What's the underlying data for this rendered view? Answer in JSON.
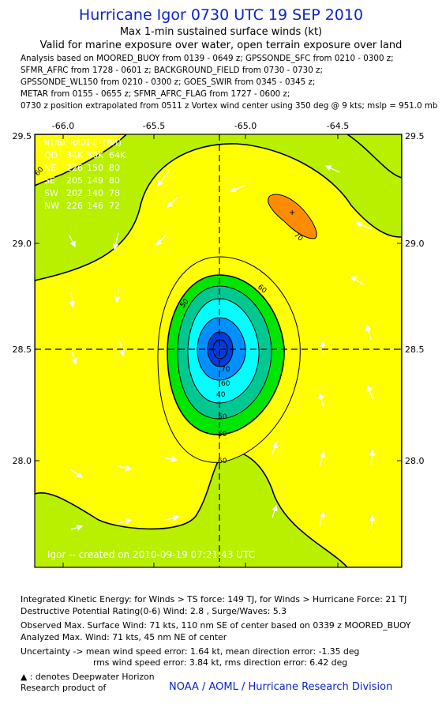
{
  "header": {
    "title": "Hurricane Igor 0730 UTC 19 SEP 2010",
    "subtitle": "Max 1-min sustained surface winds (kt)",
    "validity": "Valid for marine exposure over water, open terrain exposure over land",
    "analysis_lines": [
      "Analysis based on MOORED_BUOY from 0139 - 0649 z; GPSSONDE_SFC from 0210 - 0300 z;",
      "SFMR_AFRC from 1728 - 0601 z; BACKGROUND_FIELD from 0730 - 0730 z;",
      "GPSSONDE_WL150 from 0210 - 0300 z; GOES_SWIR from 0345 - 0345 z;",
      "METAR from 0155 - 0655 z; SFMR_AFRC_FLAG from 1727 - 0600 z;",
      "0730 z position extrapolated from 0511 z Vortex wind center using 350 deg @ 9 kts; mslp = 951.0 mb"
    ]
  },
  "map": {
    "x_ticks": [
      "-66.0",
      "-65.5",
      "-65.0",
      "-64.5"
    ],
    "y_ticks": [
      "29.5",
      "29.0",
      "28.5",
      "28.0"
    ],
    "lon_range": [
      -66.1,
      -64.35
    ],
    "lat_range": [
      27.5,
      29.5
    ],
    "center": {
      "lon": -65.1,
      "lat": 28.5
    },
    "colors": {
      "lt_green": "#b8f000",
      "yellow": "#ffff00",
      "green": "#00e600",
      "teal": "#00c890",
      "cyan": "#00ffff",
      "blue": "#0090ff",
      "navy": "#003cd8",
      "orange": "#ff8c00"
    },
    "contour_labels": [
      "60",
      "50",
      "60",
      "40",
      "50",
      "60",
      "70",
      "70",
      "60",
      "50"
    ],
    "wind_radii": {
      "title": "WIND RADII (NM)",
      "header": [
        "QD",
        "34K",
        "50K",
        "64K"
      ],
      "rows": [
        [
          "NE",
          "226",
          "150",
          "80"
        ],
        [
          "SE",
          "205",
          "149",
          "80"
        ],
        [
          "SW",
          "202",
          "140",
          "78"
        ],
        [
          "NW",
          "226",
          "146",
          "72"
        ]
      ]
    },
    "watermark": "Igor -- created on 2010-09-19 07:21:43 UTC"
  },
  "footer": {
    "ike": "Integrated Kinetic Energy:  for Winds > TS force: 149 TJ,  for Winds > Hurricane Force: 21 TJ",
    "dpr": "Destructive Potential Rating(0-6)   Wind: 2.8 , Surge/Waves: 5.3",
    "obs_max": "Observed Max. Surface Wind: 71 kts, 110 nm SE of center based on 0339 z MOORED_BUOY",
    "analyzed_max": "Analyzed Max. Wind: 71 kts, 45 nm NE of center",
    "uncertainty1": "Uncertainty -> mean wind speed error: 1.64 kt,   mean direction error:  -1.35 deg",
    "uncertainty2": "rms wind speed error: 3.84 kt,   rms direction error: 6.42 deg",
    "deepwater": ": denotes Deepwater Horizon",
    "research": "Research product of",
    "credit": "NOAA / AOML / Hurricane Research Division"
  }
}
